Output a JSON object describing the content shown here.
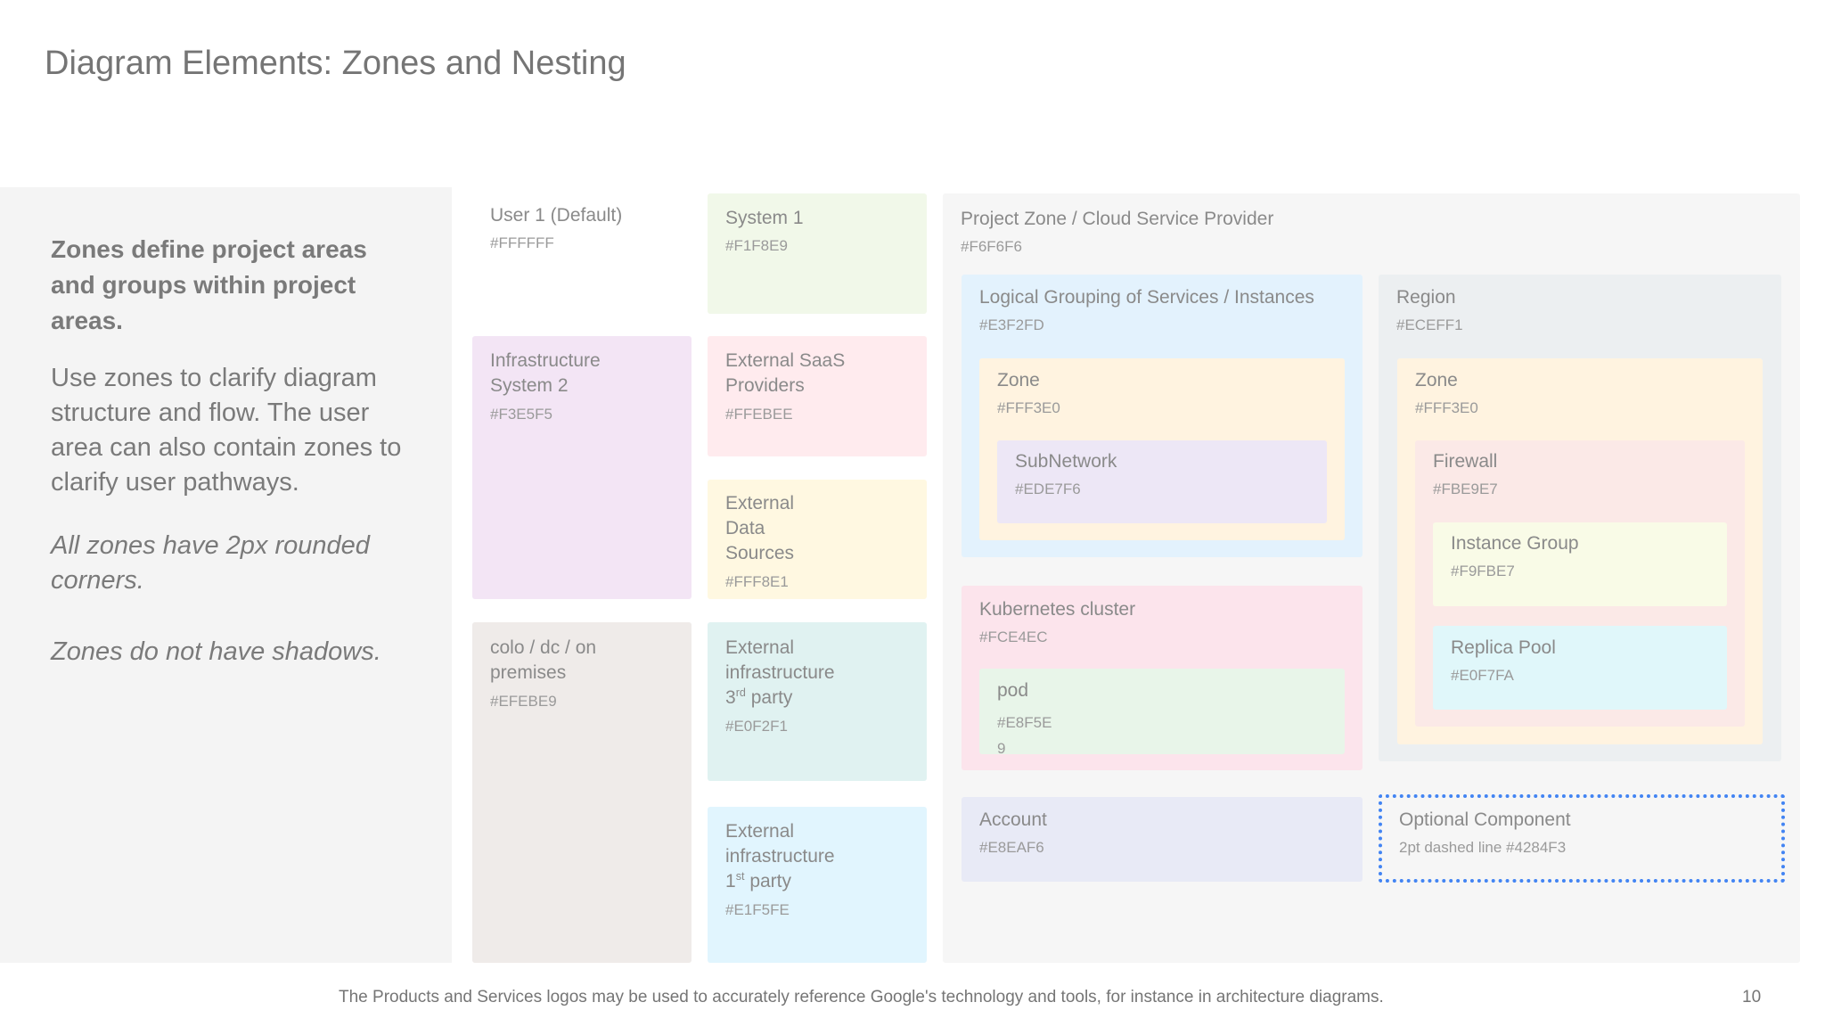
{
  "title": "Diagram Elements: Zones and Nesting",
  "left_panel": {
    "heading": "Zones define project areas and groups within project areas.",
    "body": "Use zones to clarify diagram structure and flow. The user area can also contain zones to clarify user pathways.",
    "note1": "All zones have 2px rounded corners.",
    "note2": "Zones do not have shadows."
  },
  "zones": {
    "user": {
      "label": "User 1 (Default)",
      "code": "#FFFFFF",
      "color": "#FFFFFF"
    },
    "infra2": {
      "label_l1": "Infrastructure",
      "label_l2": "System 2",
      "code": "#F3E5F5",
      "color": "#F3E5F5"
    },
    "colo": {
      "label_l1": "colo / dc / on",
      "label_l2": "premises",
      "code": "#EFEBE9",
      "color": "#EFEBE9"
    },
    "system1": {
      "label": "System 1",
      "code": "#F1F8E9",
      "color": "#F1F8E9"
    },
    "saas": {
      "label_l1": "External SaaS",
      "label_l2": "Providers",
      "code": "#FFEBEE",
      "color": "#FFEBEE"
    },
    "datasources": {
      "label_l1": "External",
      "label_l2": "Data",
      "label_l3": "Sources",
      "code": "#FFF8E1",
      "color": "#FFF8E1"
    },
    "ext3": {
      "label_l1": "External",
      "label_l2": "infrastructure",
      "label_l3_num": "3",
      "label_l3_sup": "rd",
      "label_l3_rest": " party",
      "code": "#E0F2F1",
      "color": "#E0F2F1"
    },
    "ext1": {
      "label_l1": "External",
      "label_l2": "infrastructure",
      "label_l3_num": "1",
      "label_l3_sup": "st",
      "label_l3_rest": " party",
      "code": "#E1F5FE",
      "color": "#E1F5FE"
    },
    "project": {
      "label": "Project Zone / Cloud Service Provider",
      "code": "#F6F6F6",
      "color": "#F6F6F6"
    },
    "logical": {
      "label": "Logical Grouping of Services / Instances",
      "code": "#E3F2FD",
      "color": "#E3F2FD"
    },
    "zone_a": {
      "label": "Zone",
      "code": "#FFF3E0",
      "color": "#FFF3E0"
    },
    "subnetwork": {
      "label": "SubNetwork",
      "code": "#EDE7F6",
      "color": "#EDE7F6"
    },
    "kubernetes": {
      "label": "Kubernetes cluster",
      "code": "#FCE4EC",
      "color": "#FCE4EC"
    },
    "pod": {
      "label": "pod",
      "code_l1": "#E8F5E",
      "code_l2": "9",
      "color": "#E8F5E9"
    },
    "account": {
      "label": "Account",
      "code": "#E8EAF6",
      "color": "#E8EAF6"
    },
    "region": {
      "label": "Region",
      "code": "#ECEFF1",
      "color": "#ECEFF1"
    },
    "zone_b": {
      "label": "Zone",
      "code": "#FFF3E0",
      "color": "#FFF3E0"
    },
    "firewall": {
      "label": "Firewall",
      "code": "#FBE9E7",
      "color": "#FBE9E7"
    },
    "instance_group": {
      "label": "Instance Group",
      "code": "#F9FBE7",
      "color": "#F9FBE7"
    },
    "replica_pool": {
      "label": "Replica Pool",
      "code": "#E0F7FA",
      "color": "#E0F7FA"
    },
    "optional": {
      "label": "Optional Component",
      "code": "2pt dashed line #4284F3",
      "border_color": "#4284F3"
    }
  },
  "footer": {
    "note": "The Products and Services logos may be used to accurately reference Google's technology and tools, for instance in architecture diagrams.",
    "page_number": "10"
  }
}
